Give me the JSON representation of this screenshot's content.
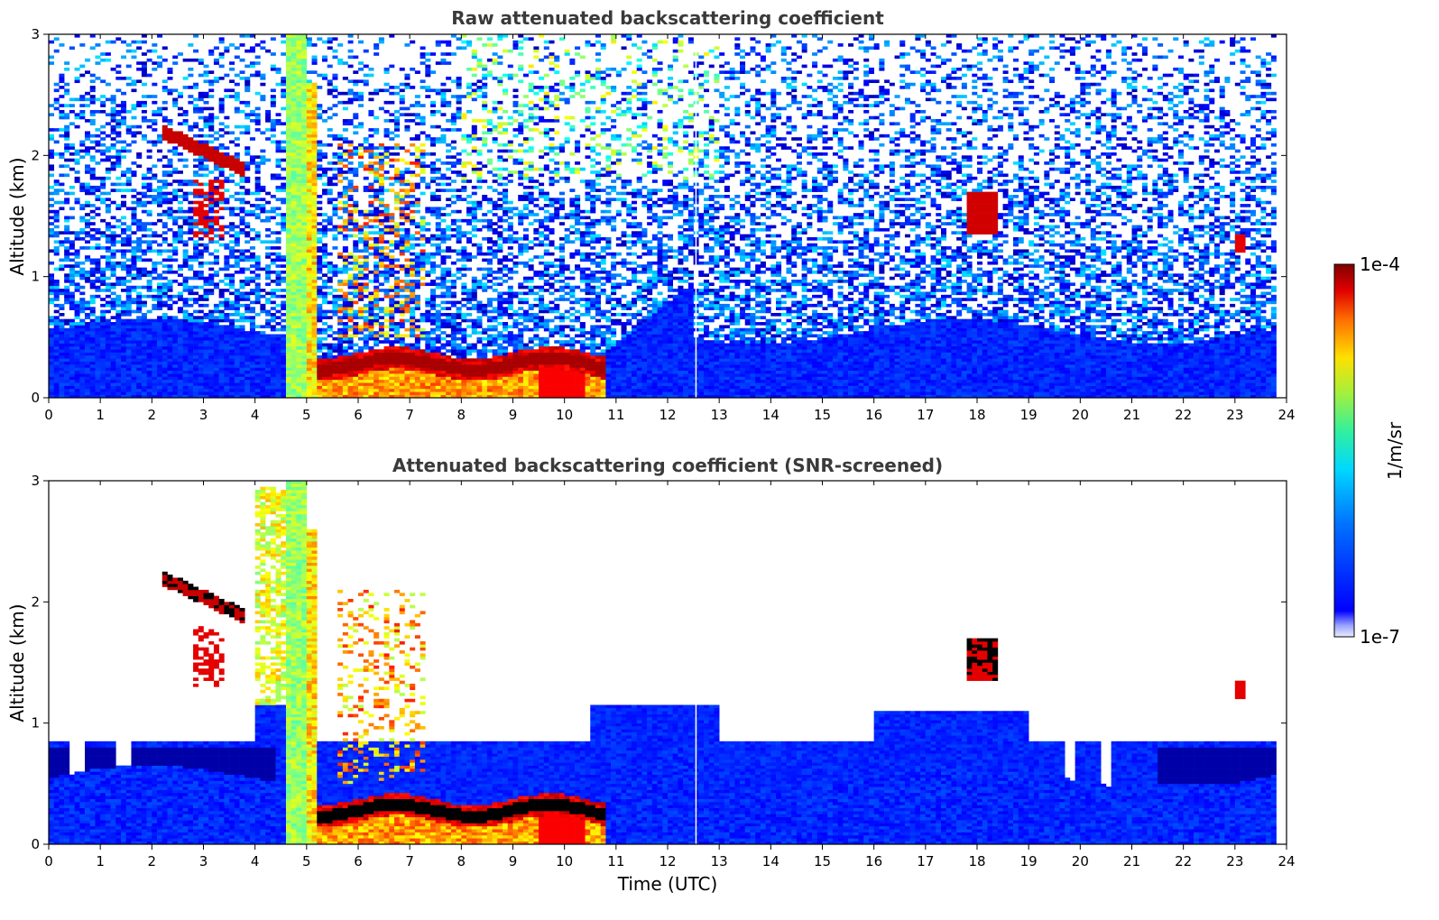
{
  "chart_data": [
    {
      "type": "heatmap",
      "title": "Raw attenuated backscattering coefficient",
      "xlabel": "",
      "ylabel": "Altitude (km)",
      "xlim": [
        0,
        24
      ],
      "ylim": [
        0,
        3
      ],
      "xticks": [
        "0",
        "1",
        "2",
        "3",
        "4",
        "5",
        "6",
        "7",
        "8",
        "9",
        "10",
        "11",
        "12",
        "13",
        "14",
        "15",
        "16",
        "17",
        "18",
        "19",
        "20",
        "21",
        "22",
        "23",
        "24"
      ],
      "yticks": [
        "0",
        "1",
        "2",
        "3"
      ],
      "features": [
        {
          "t0": 5.2,
          "t1": 10.8,
          "alt": 0.3,
          "level": "1e-4"
        },
        {
          "t0": 17.8,
          "t1": 18.4,
          "alt": 1.5,
          "level": "1e-4"
        },
        {
          "t0": 2.2,
          "t1": 3.8,
          "alt": 1.9,
          "level": "1e-4"
        }
      ]
    },
    {
      "type": "heatmap",
      "title": "Attenuated backscattering coefficient (SNR-screened)",
      "xlabel": "Time (UTC)",
      "ylabel": "Altitude (km)",
      "xlim": [
        0,
        24
      ],
      "ylim": [
        0,
        3
      ],
      "xticks": [
        "0",
        "1",
        "2",
        "3",
        "4",
        "5",
        "6",
        "7",
        "8",
        "9",
        "10",
        "11",
        "12",
        "13",
        "14",
        "15",
        "16",
        "17",
        "18",
        "19",
        "20",
        "21",
        "22",
        "23",
        "24"
      ],
      "yticks": [
        "0",
        "1",
        "2",
        "3"
      ]
    }
  ],
  "colorbar": {
    "max_label": "1e-4",
    "min_label": "1e-7",
    "unit": "1/m/sr",
    "colormap": "jet",
    "scale": "log"
  }
}
